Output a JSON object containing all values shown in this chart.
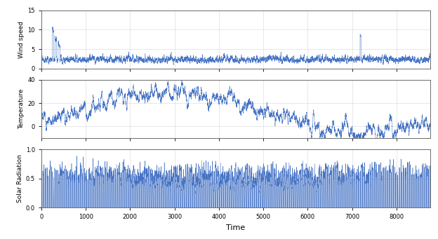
{
  "line_color": "#4472C4",
  "background_color": "#ffffff",
  "xlim": [
    0,
    8760
  ],
  "xticks": [
    0,
    1000,
    2000,
    3000,
    4000,
    5000,
    6000,
    7000,
    8000
  ],
  "subplot1": {
    "ylabel": "Wind speed",
    "ylim": [
      0,
      15
    ],
    "yticks": [
      0,
      5,
      10,
      15
    ]
  },
  "subplot2": {
    "ylabel": "Temperature",
    "ylim": [
      -10,
      40
    ],
    "yticks": [
      0,
      20,
      40
    ]
  },
  "subplot3": {
    "ylabel": "Solar Radiation",
    "ylim": [
      0,
      1
    ],
    "yticks": [
      0,
      0.5,
      1
    ],
    "xlabel": "Time"
  },
  "n_points": 8760,
  "seed": 0
}
